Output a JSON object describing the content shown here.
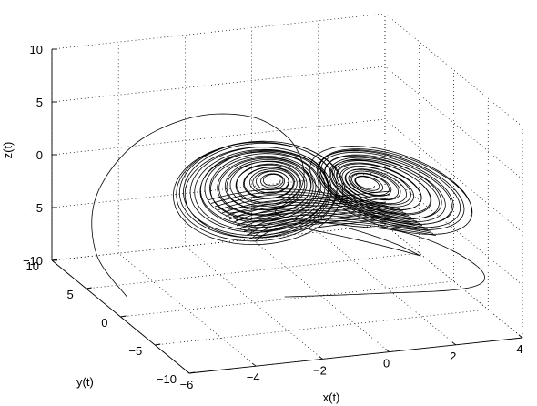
{
  "chart_data": {
    "type": "line",
    "projection": "3d",
    "xlabel": "x(t)",
    "ylabel": "y(t)",
    "zlabel": "z(t)",
    "xlim": [
      -6,
      4
    ],
    "ylim": [
      -10,
      10
    ],
    "zlim": [
      -10,
      10
    ],
    "grid": true,
    "x_ticks": [
      "−6",
      "−4",
      "−2",
      "0",
      "2",
      "4"
    ],
    "y_ticks": [
      "−10",
      "−5",
      "0",
      "5",
      "10"
    ],
    "z_ticks": [
      "−10",
      "−5",
      "0",
      "5",
      "10"
    ],
    "attractor": {
      "description_free": true,
      "lobes": [
        {
          "center": [
            -1.5,
            3.0,
            -3.5
          ]
        },
        {
          "center": [
            1.0,
            -2.0,
            -3.5
          ]
        }
      ]
    },
    "series": [
      {
        "color": "#000000",
        "points_xyz": [
          [
            -5.6,
            1.0,
            -8.8
          ],
          [
            -5.8,
            4.5,
            -6.5
          ],
          [
            -5.2,
            7.5,
            -3.0
          ],
          [
            -3.8,
            8.8,
            0.8
          ],
          [
            -2.2,
            7.9,
            3.4
          ],
          [
            -1.0,
            5.4,
            4.4
          ],
          [
            -0.4,
            2.8,
            3.6
          ],
          [
            -0.3,
            1.0,
            1.6
          ],
          [
            -0.6,
            0.4,
            -0.5
          ],
          [
            -1.2,
            0.6,
            -2.2
          ],
          [
            0.4,
            -1.2,
            -2.8
          ],
          [
            1.6,
            -3.4,
            -2.6
          ],
          [
            2.6,
            -5.2,
            -3.4
          ],
          [
            3.4,
            -6.4,
            -5.0
          ],
          [
            3.6,
            -6.2,
            -6.6
          ],
          [
            3.0,
            -5.0,
            -7.8
          ],
          [
            1.2,
            -3.0,
            -8.6
          ],
          [
            -0.8,
            -1.5,
            -9.0
          ],
          [
            -1.2,
            -0.6,
            -9.4
          ]
        ]
      }
    ]
  }
}
